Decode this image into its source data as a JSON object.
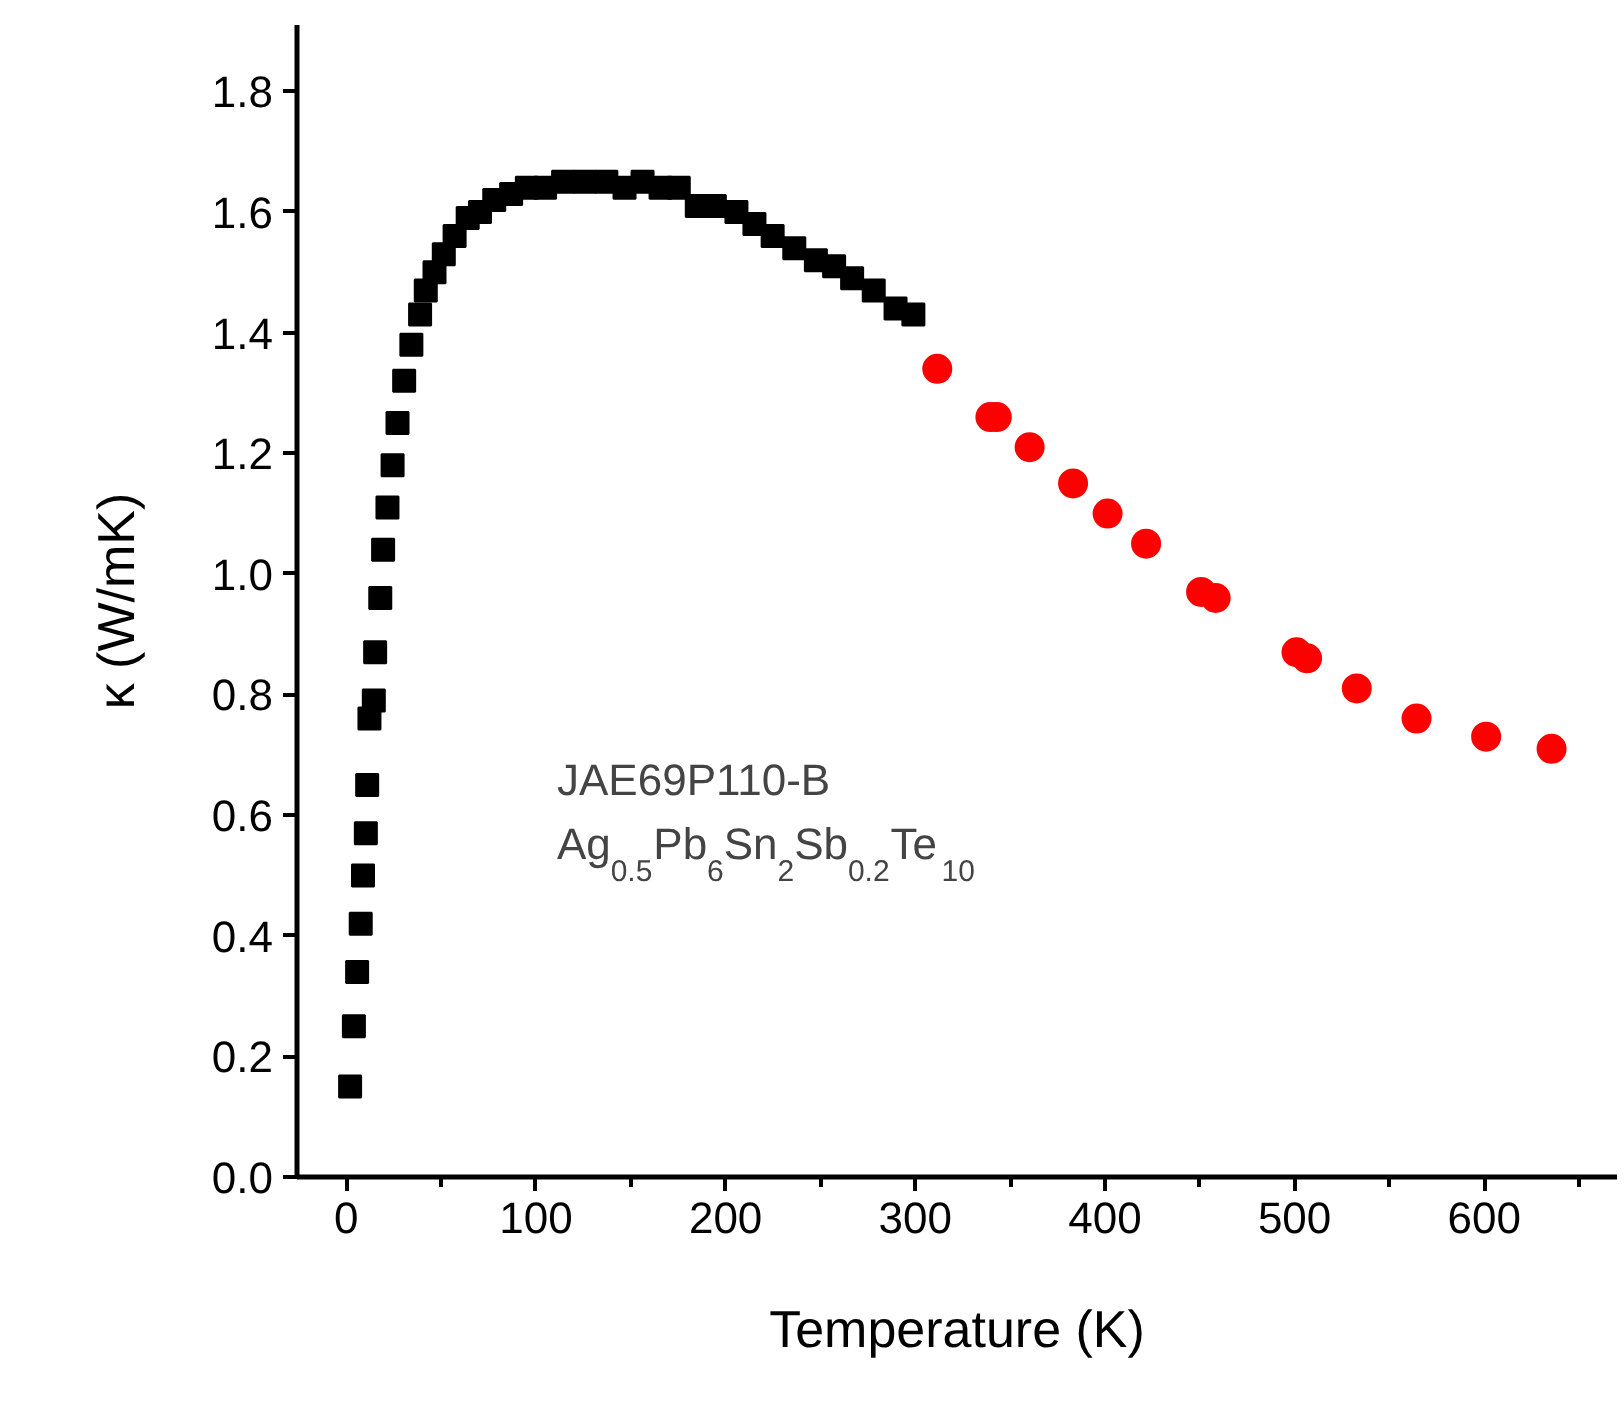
{
  "chart_data": {
    "type": "scatter",
    "xlabel": "Temperature (K)",
    "ylabel": "κ (W/mK)",
    "xlim": [
      -26,
      670
    ],
    "ylim": [
      0,
      1.91
    ],
    "xticks": [
      0,
      100,
      200,
      300,
      400,
      500,
      600
    ],
    "yticks": [
      {
        "value": 0,
        "label": "0.0"
      },
      0.2,
      0.4,
      0.6,
      0.8,
      {
        "value": 1,
        "label": "1.0"
      },
      1.2,
      1.4,
      1.6,
      1.8
    ],
    "grid": false,
    "annotations": [
      "JAE69P110-B",
      "Ag$_{0.5}$Pb$_{6}$Sn$_{2}$Sb$_{0.2}$Te$_{10}$"
    ],
    "series": [
      {
        "color": "#000000",
        "marker": "square",
        "x": [
          2,
          4,
          5.7,
          7.6,
          8.8,
          10.3,
          11,
          12.2,
          14.5,
          15.2,
          17.9,
          19.4,
          21.7,
          24.4,
          27,
          30.5,
          34.3,
          38.9,
          41.9,
          46.5,
          51.4,
          57.1,
          64,
          70.5,
          78,
          86.9,
          95.2,
          104.8,
          114.3,
          125.7,
          137.1,
          146.7,
          156.2,
          165.7,
          175.3,
          184.8,
          194.3,
          205.7,
          215.2,
          224.8,
          236.2,
          247.6,
          257.2,
          266.7,
          278.1,
          289.6,
          299
        ],
        "values": [
          0.15,
          0.25,
          0.34,
          0.42,
          0.5,
          0.57,
          0.65,
          0.76,
          0.79,
          0.87,
          0.96,
          1.04,
          1.11,
          1.18,
          1.25,
          1.32,
          1.38,
          1.43,
          1.47,
          1.5,
          1.53,
          1.56,
          1.59,
          1.6,
          1.62,
          1.63,
          1.64,
          1.64,
          1.65,
          1.65,
          1.65,
          1.64,
          1.65,
          1.64,
          1.64,
          1.61,
          1.61,
          1.6,
          1.58,
          1.56,
          1.54,
          1.52,
          1.51,
          1.49,
          1.47,
          1.44,
          1.43
        ]
      },
      {
        "color": "#ff0000",
        "marker": "circle",
        "x": [
          311.6,
          339.6,
          343,
          360.3,
          383.2,
          401.4,
          421.7,
          450.7,
          458.4,
          501,
          506.6,
          532.8,
          564.3,
          601,
          635.5
        ],
        "values": [
          1.34,
          1.26,
          1.26,
          1.21,
          1.15,
          1.1,
          1.05,
          0.97,
          0.96,
          0.87,
          0.86,
          0.81,
          0.76,
          0.73,
          0.71
        ]
      }
    ]
  }
}
